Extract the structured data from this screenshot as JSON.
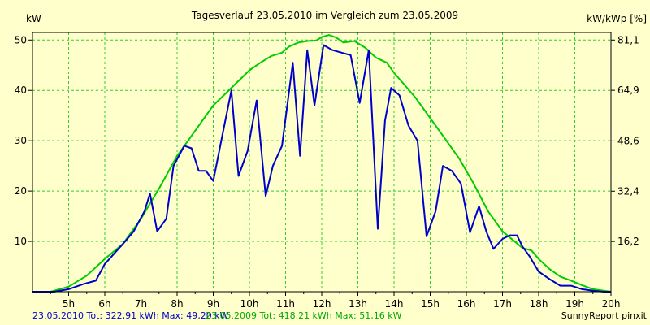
{
  "chart_data": {
    "type": "line",
    "title": "Tagesverlauf 23.05.2010 im Vergleich zum 23.05.2009",
    "ylabel_left": "kW",
    "ylabel_right": "kW/kWp [%]",
    "xlim": [
      4.0,
      20.0
    ],
    "ylim": [
      0,
      51.5
    ],
    "grid": true,
    "x_ticks": [
      5,
      6,
      7,
      8,
      9,
      10,
      11,
      12,
      13,
      14,
      15,
      16,
      17,
      18,
      19,
      20
    ],
    "x_tick_labels": [
      "5h",
      "6h",
      "7h",
      "8h",
      "9h",
      "10h",
      "11h",
      "12h",
      "13h",
      "14h",
      "15h",
      "16h",
      "17h",
      "18h",
      "19h",
      "20h"
    ],
    "y_ticks_left": [
      10,
      20,
      30,
      40,
      50
    ],
    "y_tick_labels_left": [
      "10",
      "20",
      "30",
      "40",
      "50"
    ],
    "y_ticks_right": [
      16.2,
      32.4,
      48.6,
      64.9,
      81.1
    ],
    "y_tick_labels_right": [
      "16,2",
      "32,4",
      "48,6",
      "64,9",
      "81,1"
    ],
    "colors": {
      "series_2010": "#0000cc",
      "series_2009": "#00cc00",
      "grid": "#33cc33",
      "axis": "#000000",
      "background": "#ffffcc"
    },
    "series": [
      {
        "name": "23.05.2010",
        "x": [
          4.0,
          4.6,
          5.0,
          5.4,
          5.75,
          6.0,
          6.5,
          6.8,
          7.1,
          7.25,
          7.45,
          7.7,
          7.9,
          8.2,
          8.4,
          8.6,
          8.8,
          9.0,
          9.25,
          9.5,
          9.7,
          9.95,
          10.2,
          10.45,
          10.65,
          10.9,
          11.2,
          11.4,
          11.6,
          11.8,
          12.05,
          12.3,
          12.55,
          12.8,
          13.05,
          13.3,
          13.55,
          13.75,
          13.92,
          14.15,
          14.4,
          14.65,
          14.9,
          15.15,
          15.35,
          15.6,
          15.85,
          16.1,
          16.35,
          16.55,
          16.75,
          17.0,
          17.2,
          17.4,
          17.55,
          17.75,
          18.0,
          18.3,
          18.6,
          18.9,
          19.2,
          19.5,
          19.8,
          20.0
        ],
        "y": [
          0,
          0,
          0.5,
          1.5,
          2.2,
          5.5,
          9.5,
          12,
          16,
          19.5,
          12,
          14.5,
          25,
          29,
          28.5,
          24,
          24,
          22,
          31,
          40,
          23,
          28,
          38,
          19,
          25,
          29,
          45.5,
          27,
          48,
          37,
          49,
          48,
          47.5,
          47,
          37.5,
          48,
          12.5,
          34,
          40.5,
          39,
          33,
          30,
          11,
          16,
          25,
          24,
          21.5,
          11.8,
          17,
          12,
          8.5,
          10.5,
          11.2,
          11.2,
          9,
          7,
          4,
          2.5,
          1.2,
          1.2,
          0.5,
          0.2,
          0,
          0
        ]
      },
      {
        "name": "23.05.2009",
        "x": [
          4.0,
          4.5,
          5.0,
          5.5,
          6.0,
          6.5,
          7.0,
          7.5,
          8.0,
          8.5,
          9.0,
          9.5,
          10.0,
          10.3,
          10.6,
          10.9,
          11.1,
          11.35,
          11.6,
          11.85,
          12.0,
          12.2,
          12.4,
          12.6,
          12.9,
          13.2,
          13.5,
          13.8,
          14.0,
          14.3,
          14.6,
          15.0,
          15.4,
          15.8,
          16.2,
          16.6,
          17.0,
          17.3,
          17.55,
          17.8,
          18.0,
          18.3,
          18.6,
          18.9,
          19.2,
          19.5,
          19.8,
          20.0
        ],
        "y": [
          0,
          0,
          1.0,
          3.2,
          6.5,
          9.5,
          14.5,
          20.5,
          27,
          32,
          37,
          40.5,
          44,
          45.5,
          46.8,
          47.5,
          48.7,
          49.5,
          49.8,
          49.9,
          50.6,
          51.0,
          50.5,
          49.5,
          49.8,
          48.5,
          46.5,
          45.5,
          43.5,
          41,
          38.5,
          34.5,
          30.5,
          26.5,
          21.5,
          16,
          12,
          10.2,
          8.7,
          8.2,
          6.5,
          4.5,
          3.0,
          2.2,
          1.3,
          0.5,
          0.2,
          0
        ]
      }
    ]
  },
  "footer": {
    "series_2010_summary": "23.05.2010 Tot: 322,91 kWh Max: 49,20 kW",
    "series_2009_summary": "23.05.2009 Tot: 418,21 kWh Max: 51,16 kW",
    "credit": "SunnyReport pinxit"
  }
}
